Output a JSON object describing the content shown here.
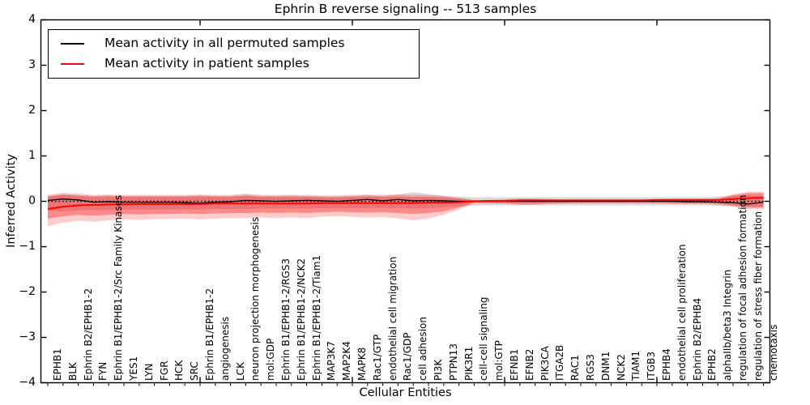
{
  "title": "Ephrin B reverse signaling -- 513 samples",
  "axes": {
    "x_label": "Cellular Entities",
    "y_label": "Inferred Activity",
    "y_ticks": [
      "4",
      "3",
      "2",
      "1",
      "0",
      "−1",
      "−2",
      "−3",
      "−4"
    ]
  },
  "legend": {
    "items": [
      {
        "label": "Mean activity in all permuted samples",
        "color": "#000000"
      },
      {
        "label": "Mean activity in patient samples",
        "color": "#ff0000"
      }
    ]
  },
  "colors": {
    "frame": "#000000",
    "zero_line": "#000000",
    "permuted_line": "#000000",
    "patient_line": "#ff0000",
    "permuted_band": "#888888",
    "patient_band": "#ff0000",
    "background": "#ffffff"
  },
  "chart_data": {
    "type": "line",
    "title": "Ephrin B reverse signaling -- 513 samples",
    "xlabel": "Cellular Entities",
    "ylabel": "Inferred Activity",
    "ylim": [
      -4,
      4
    ],
    "grid": false,
    "legend_position": "upper left",
    "x_major_tick_every": 10,
    "categories": [
      "EPHB1",
      "BLK",
      "Ephrin B2/EPHB1-2",
      "FYN",
      "Ephrin B1/EPHB1-2/Src Family Kinases",
      "YES1",
      "LYN",
      "FGR",
      "HCK",
      "SRC",
      "Ephrin B1/EPHB1-2",
      "angiogenesis",
      "LCK",
      "neuron projection morphogenesis",
      "mol:GDP",
      "Ephrin B1/EPHB1-2/RGS3",
      "Ephrin B1/EPHB1-2/NCK2",
      "Ephrin B1/EPHB1-2/Tiam1",
      "MAP3K7",
      "MAP2K4",
      "MAPK8",
      "Rac1/GTP",
      "endothelial cell migration",
      "Rac1/GDP",
      "cell adhesion",
      "PI3K",
      "PTPN13",
      "PIK3R1",
      "cell-cell signaling",
      "mol:GTP",
      "EFNB1",
      "EFNB2",
      "PIK3CA",
      "ITGA2B",
      "RAC1",
      "RGS3",
      "DNM1",
      "NCK2",
      "TIAM1",
      "ITGB3",
      "EPHB4",
      "endothelial cell proliferation",
      "Ephrin B2/EPHB4",
      "EPHB2",
      "alphaIIb/beta3 Integrin",
      "regulation of focal adhesion formation",
      "regulation of stress fiber formation",
      "chemotaxis"
    ],
    "series": [
      {
        "name": "Mean activity in all permuted samples",
        "color": "#000000",
        "values": [
          0.02,
          0.05,
          0.03,
          -0.02,
          -0.01,
          -0.02,
          -0.02,
          -0.02,
          -0.02,
          -0.03,
          -0.04,
          -0.02,
          -0.01,
          0.02,
          0.01,
          0.0,
          0.01,
          0.02,
          0.01,
          0.0,
          0.02,
          0.04,
          0.01,
          0.04,
          0.01,
          0.02,
          0.01,
          0.0,
          0.0,
          0.0,
          0.0,
          0.0,
          0.0,
          0.0,
          0.0,
          0.0,
          0.0,
          0.0,
          0.0,
          0.0,
          0.0,
          0.0,
          -0.01,
          -0.01,
          -0.02,
          -0.03,
          -0.06,
          -0.02
        ]
      },
      {
        "name": "Mean activity in patient samples",
        "color": "#ff0000",
        "values": [
          -0.17,
          -0.12,
          -0.09,
          -0.08,
          -0.07,
          -0.07,
          -0.06,
          -0.06,
          -0.06,
          -0.06,
          -0.06,
          -0.05,
          -0.05,
          -0.05,
          -0.05,
          -0.05,
          -0.05,
          -0.05,
          -0.04,
          -0.04,
          -0.04,
          -0.04,
          -0.04,
          -0.04,
          -0.04,
          -0.03,
          -0.03,
          -0.02,
          0.0,
          0.01,
          0.01,
          0.02,
          0.02,
          0.02,
          0.02,
          0.02,
          0.02,
          0.02,
          0.02,
          0.02,
          0.03,
          0.03,
          0.03,
          0.03,
          0.03,
          0.05,
          0.07,
          0.08
        ]
      }
    ],
    "bands": [
      {
        "name": "permuted-std-band",
        "color": "#888888",
        "opacity": 0.3,
        "top": [
          0.12,
          0.16,
          0.14,
          0.12,
          0.13,
          0.12,
          0.12,
          0.12,
          0.12,
          0.12,
          0.13,
          0.12,
          0.12,
          0.15,
          0.12,
          0.12,
          0.13,
          0.12,
          0.11,
          0.11,
          0.12,
          0.14,
          0.12,
          0.15,
          0.2,
          0.16,
          0.12,
          0.1,
          0.09,
          0.09,
          0.09,
          0.09,
          0.09,
          0.09,
          0.09,
          0.09,
          0.09,
          0.09,
          0.09,
          0.09,
          0.09,
          0.09,
          0.09,
          0.09,
          0.1,
          0.12,
          0.13,
          0.12
        ],
        "bottom": [
          -0.2,
          -0.22,
          -0.2,
          -0.19,
          -0.19,
          -0.18,
          -0.18,
          -0.18,
          -0.18,
          -0.18,
          -0.18,
          -0.17,
          -0.17,
          -0.17,
          -0.16,
          -0.16,
          -0.16,
          -0.16,
          -0.15,
          -0.15,
          -0.15,
          -0.15,
          -0.14,
          -0.15,
          -0.16,
          -0.15,
          -0.13,
          -0.11,
          -0.1,
          -0.09,
          -0.09,
          -0.09,
          -0.09,
          -0.09,
          -0.09,
          -0.09,
          -0.09,
          -0.09,
          -0.09,
          -0.09,
          -0.09,
          -0.09,
          -0.09,
          -0.09,
          -0.1,
          -0.11,
          -0.12,
          -0.11
        ]
      },
      {
        "name": "patient-band-outer",
        "color": "#ff0000",
        "opacity": 0.2,
        "top": [
          0.14,
          0.19,
          0.17,
          0.14,
          0.15,
          0.14,
          0.14,
          0.14,
          0.14,
          0.14,
          0.15,
          0.14,
          0.14,
          0.17,
          0.14,
          0.14,
          0.14,
          0.14,
          0.13,
          0.13,
          0.14,
          0.15,
          0.14,
          0.16,
          0.14,
          0.14,
          0.12,
          0.08,
          0.03,
          0.03,
          0.05,
          0.06,
          0.06,
          0.05,
          0.04,
          0.04,
          0.04,
          0.04,
          0.04,
          0.04,
          0.05,
          0.06,
          0.06,
          0.06,
          0.07,
          0.16,
          0.21,
          0.21
        ],
        "bottom": [
          -0.55,
          -0.47,
          -0.43,
          -0.45,
          -0.42,
          -0.4,
          -0.41,
          -0.39,
          -0.39,
          -0.38,
          -0.4,
          -0.38,
          -0.37,
          -0.37,
          -0.36,
          -0.37,
          -0.36,
          -0.37,
          -0.34,
          -0.33,
          -0.34,
          -0.36,
          -0.35,
          -0.38,
          -0.42,
          -0.38,
          -0.3,
          -0.18,
          -0.05,
          -0.05,
          -0.06,
          -0.08,
          -0.08,
          -0.06,
          -0.05,
          -0.05,
          -0.05,
          -0.05,
          -0.05,
          -0.05,
          -0.05,
          -0.06,
          -0.06,
          -0.06,
          -0.08,
          -0.12,
          -0.17,
          -0.17
        ]
      },
      {
        "name": "patient-band-inner",
        "color": "#ff0000",
        "opacity": 0.33,
        "top": [
          0.1,
          0.14,
          0.12,
          0.1,
          0.11,
          0.1,
          0.1,
          0.1,
          0.1,
          0.1,
          0.11,
          0.1,
          0.1,
          0.12,
          0.1,
          0.1,
          0.1,
          0.1,
          0.09,
          0.09,
          0.1,
          0.11,
          0.1,
          0.11,
          0.1,
          0.1,
          0.09,
          0.06,
          0.02,
          0.02,
          0.03,
          0.04,
          0.04,
          0.03,
          0.03,
          0.03,
          0.03,
          0.03,
          0.03,
          0.03,
          0.03,
          0.04,
          0.04,
          0.04,
          0.05,
          0.13,
          0.18,
          0.18
        ],
        "bottom": [
          -0.38,
          -0.33,
          -0.3,
          -0.32,
          -0.3,
          -0.28,
          -0.29,
          -0.28,
          -0.28,
          -0.27,
          -0.28,
          -0.27,
          -0.26,
          -0.26,
          -0.25,
          -0.26,
          -0.25,
          -0.26,
          -0.24,
          -0.23,
          -0.24,
          -0.25,
          -0.24,
          -0.26,
          -0.28,
          -0.26,
          -0.22,
          -0.14,
          -0.03,
          -0.03,
          -0.04,
          -0.05,
          -0.05,
          -0.04,
          -0.04,
          -0.03,
          -0.03,
          -0.03,
          -0.03,
          -0.03,
          -0.03,
          -0.04,
          -0.04,
          -0.04,
          -0.05,
          -0.09,
          -0.14,
          -0.14
        ]
      }
    ],
    "zero_line": {
      "y": 0,
      "style": "dotted",
      "color": "#000000"
    }
  }
}
